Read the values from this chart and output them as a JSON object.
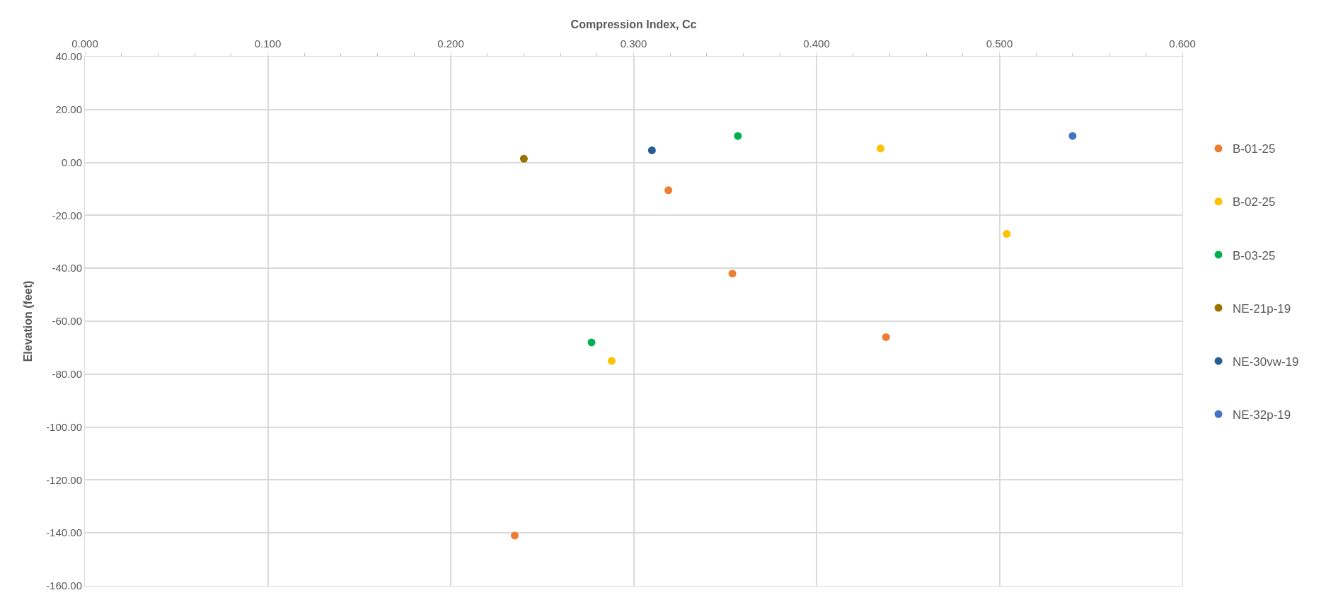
{
  "chart_data": {
    "type": "scatter",
    "xlabel": "Compression Index, Cc",
    "ylabel": "Elevation (feet)",
    "xlim": [
      0,
      0.6
    ],
    "xticks": [
      {
        "value": 0,
        "label": "0.000"
      },
      {
        "value": 0.1,
        "label": "0.100"
      },
      {
        "value": 0.2,
        "label": "0.200"
      },
      {
        "value": 0.3,
        "label": "0.300"
      },
      {
        "value": 0.4,
        "label": "0.400"
      },
      {
        "value": 0.5,
        "label": "0.500"
      },
      {
        "value": 0.6,
        "label": "0.600"
      }
    ],
    "ylim": [
      -160,
      40
    ],
    "yticks": [
      {
        "value": 40,
        "label": "40.00"
      },
      {
        "value": 20,
        "label": "20.00"
      },
      {
        "value": 0,
        "label": "0.00"
      },
      {
        "value": -20,
        "label": "-20.00"
      },
      {
        "value": -40,
        "label": "-40.00"
      },
      {
        "value": -60,
        "label": "-60.00"
      },
      {
        "value": -80,
        "label": "-80.00"
      },
      {
        "value": -100,
        "label": "-100.00"
      },
      {
        "value": -120,
        "label": "-120.00"
      },
      {
        "value": -140,
        "label": "-140.00"
      },
      {
        "value": -160,
        "label": "-160.00"
      }
    ],
    "grid": true,
    "legend": "right",
    "marker": "circle",
    "series": [
      {
        "name": "B-01-25",
        "color": "#ed7d31",
        "x": [
          0.319,
          0.354,
          0.438,
          0.235
        ],
        "values": [
          -10.5,
          -42,
          -66,
          -141
        ]
      },
      {
        "name": "B-02-25",
        "color": "#ffc000",
        "x": [
          0.435,
          0.504,
          0.288
        ],
        "values": [
          5.3,
          -27,
          -75
        ]
      },
      {
        "name": "B-03-25",
        "color": "#00b050",
        "x": [
          0.357,
          0.277
        ],
        "values": [
          10,
          -68
        ]
      },
      {
        "name": "NE-21p-19",
        "color": "#997300",
        "x": [
          0.24
        ],
        "values": [
          1.4
        ]
      },
      {
        "name": "NE-30vw-19",
        "color": "#255e91",
        "x": [
          0.31
        ],
        "values": [
          4.6
        ]
      },
      {
        "name": "NE-32p-19",
        "color": "#4472c4",
        "x": [
          0.54
        ],
        "values": [
          10
        ]
      }
    ]
  }
}
